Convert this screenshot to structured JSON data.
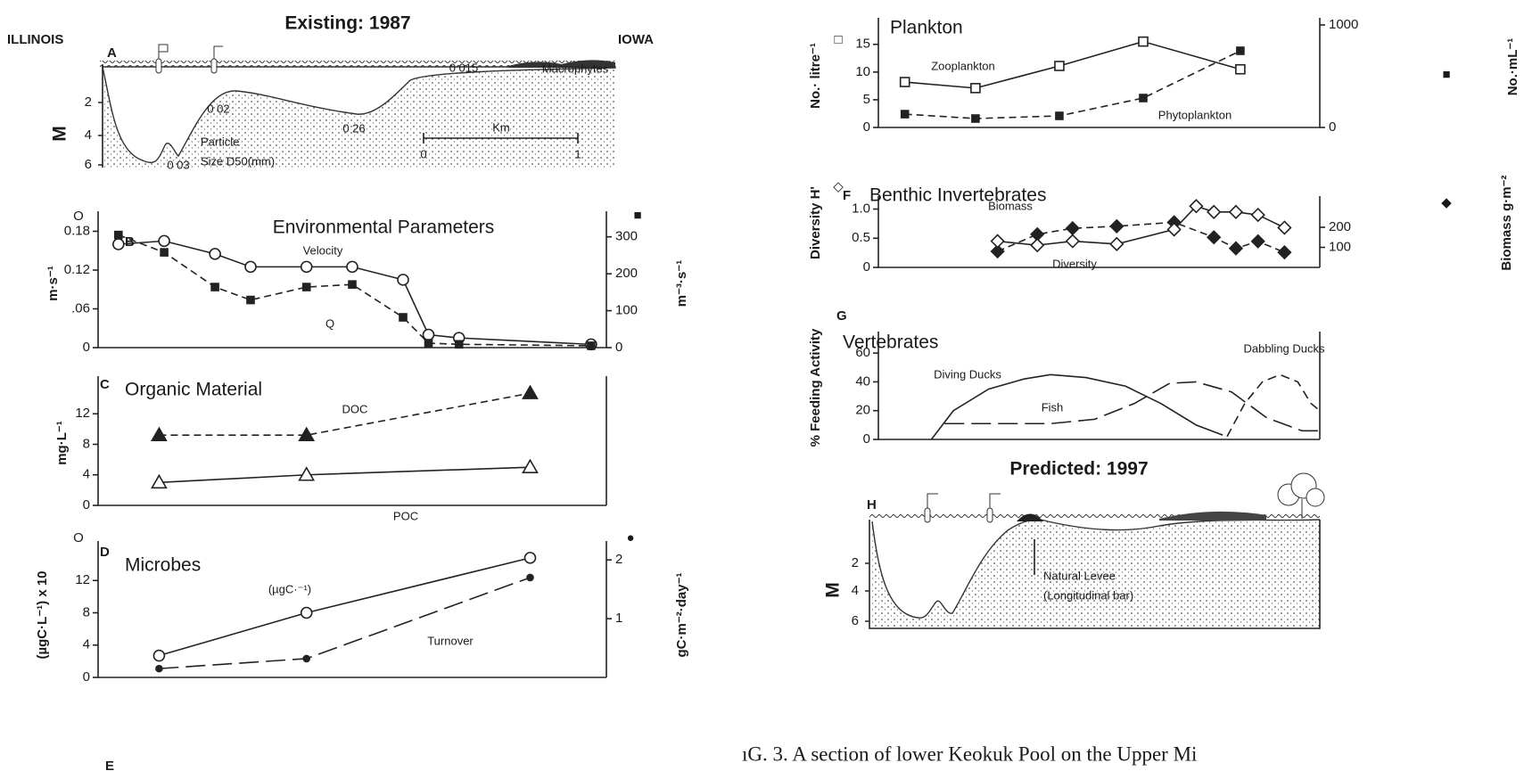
{
  "diagrams": {
    "existing": {
      "title": "Existing: 1987",
      "left_label": "ILLINOIS",
      "right_label": "IOWA",
      "letter": "A",
      "depth_label": "M",
      "depth_ticks": [
        2,
        4,
        6
      ],
      "annotations": [
        "0 03",
        "0 02",
        "0 26",
        "0 015",
        "Macrophytes",
        "Particle",
        "Size D50(mm)"
      ],
      "scale": {
        "label": "Km",
        "start": 0,
        "end": 1
      }
    },
    "predicted": {
      "title": "Predicted: 1997",
      "letter": "H",
      "depth_label": "M",
      "depth_ticks": [
        2,
        4,
        6
      ],
      "annotations": [
        "Natural Levee",
        "(Longitudinal bar)"
      ]
    }
  },
  "bottom_letter": "E",
  "caption": "ıG. 3.   A section of lower Keokuk Pool on the Upper Mi",
  "chart_data": [
    {
      "type": "line",
      "letter": "B",
      "title": "Environmental Parameters",
      "y_label": "m·s⁻¹",
      "y_symbol": "O",
      "y2_label": "m⁻³·s⁻¹",
      "y2_symbol": "■",
      "xlim": [
        0,
        100
      ],
      "ylim": [
        0,
        0.2
      ],
      "yticks": [
        0,
        {
          "value": 0.06,
          "label": ".06"
        },
        0.12,
        0.18
      ],
      "y2lim": [
        0,
        350
      ],
      "y2ticks": [
        0,
        100,
        200,
        300
      ],
      "series": [
        {
          "name": "Velocity",
          "color": "#222222",
          "marker": "circle-open",
          "dash": "solid",
          "x": [
            4,
            13,
            23,
            30,
            41,
            50,
            60,
            65,
            71,
            97
          ],
          "values": [
            0.16,
            0.165,
            0.145,
            0.125,
            0.125,
            0.125,
            0.105,
            0.02,
            0.015,
            0.005
          ]
        },
        {
          "name": "Q",
          "axis": "y2",
          "color": "#222222",
          "marker": "square-filled",
          "dash": "dashed",
          "x": [
            4,
            13,
            23,
            30,
            41,
            50,
            60,
            65,
            71,
            97
          ],
          "values": [
            305,
            258,
            164,
            129,
            164,
            171,
            82,
            12,
            9,
            5
          ]
        }
      ]
    },
    {
      "type": "line",
      "letter": "C",
      "title": "Organic Material",
      "y_label": "mg·L⁻¹",
      "xlim": [
        0,
        100
      ],
      "ylim": [
        0,
        16
      ],
      "yticks": [
        0,
        4,
        8,
        12
      ],
      "series": [
        {
          "name": "DOC",
          "color": "#222222",
          "marker": "triangle-filled",
          "dash": "dashed",
          "x": [
            12,
            41,
            85
          ],
          "values": [
            9.2,
            9.2,
            14.7
          ]
        },
        {
          "name": "POC",
          "color": "#222222",
          "marker": "triangle-open",
          "dash": "solid",
          "x": [
            12,
            41,
            85
          ],
          "values": [
            3.0,
            4.0,
            5.0
          ]
        }
      ]
    },
    {
      "type": "line",
      "letter": "D",
      "title": "Microbes",
      "y_label": "(µgC·L⁻¹) x 10",
      "y_symbol": "O",
      "y2_label": "gC·m⁻²·day⁻¹",
      "y2_symbol": "●",
      "xlim": [
        0,
        100
      ],
      "ylim": [
        0,
        16
      ],
      "yticks": [
        0,
        4,
        8,
        12
      ],
      "y2lim": [
        0,
        2.2
      ],
      "y2ticks": [
        1,
        2
      ],
      "series": [
        {
          "name": "(µgC·⁻¹)",
          "color": "#222222",
          "marker": "circle-open",
          "dash": "solid",
          "x": [
            12,
            41,
            85
          ],
          "values": [
            2.7,
            8.0,
            14.8
          ]
        },
        {
          "name": "Turnover",
          "axis": "y2",
          "color": "#222222",
          "marker": "dot",
          "dash": "long-dash",
          "x": [
            12,
            41,
            85
          ],
          "values": [
            0.15,
            0.32,
            1.7
          ]
        }
      ]
    },
    {
      "type": "line",
      "title": "Plankton",
      "y_label": "No.· litre⁻¹",
      "y_symbol": "□",
      "y2_label": "No.·mL⁻¹",
      "y2_symbol": "■",
      "xlim": [
        0,
        100
      ],
      "ylim": [
        0,
        18.5
      ],
      "yticks": [
        0,
        5,
        10,
        15
      ],
      "y2lim": [
        0,
        1000
      ],
      "y2ticks": [
        0,
        1000
      ],
      "series": [
        {
          "name": "Zooplankton",
          "color": "#222222",
          "marker": "square-open",
          "dash": "solid",
          "x": [
            6,
            22,
            41,
            60,
            82
          ],
          "values": [
            8.2,
            7.1,
            11.1,
            15.5,
            10.5
          ]
        },
        {
          "name": "Phytoplankton",
          "axis": "y2",
          "color": "#222222",
          "marker": "square-filled",
          "dash": "dashed",
          "x": [
            6,
            22,
            41,
            60,
            82
          ],
          "values": [
            130,
            87,
            113,
            287,
            748
          ]
        }
      ]
    },
    {
      "type": "line",
      "letter": "F",
      "title": "Benthic Invertebrates",
      "y_label": "Diversity H'",
      "y_symbol": "◇",
      "y2_label": "Biomass g·m⁻²",
      "y2_symbol": "◆",
      "xlim": [
        0,
        100
      ],
      "ylim": [
        0,
        1.1
      ],
      "yticks": [
        0,
        0.5,
        {
          "value": 1,
          "label": "1.0"
        }
      ],
      "y2lim": [
        0,
        320
      ],
      "y2ticks": [
        100,
        200
      ],
      "series": [
        {
          "name": "Biomass",
          "axis": "y2",
          "color": "#222222",
          "marker": "diamond-filled",
          "dash": "dashed",
          "x": [
            27,
            36,
            44,
            54,
            67,
            76,
            81,
            86,
            92
          ],
          "values": [
            80,
            165,
            195,
            205,
            225,
            150,
            95,
            130,
            75
          ]
        },
        {
          "name": "Diversity",
          "color": "#222222",
          "marker": "diamond-open",
          "dash": "solid",
          "x": [
            27,
            36,
            44,
            54,
            67,
            72,
            76,
            81,
            86,
            92
          ],
          "values": [
            0.45,
            0.38,
            0.45,
            0.4,
            0.65,
            1.05,
            0.95,
            0.95,
            0.9,
            0.68
          ]
        }
      ]
    },
    {
      "type": "line",
      "letter": "G",
      "title": "Vertebrates",
      "y_label": "% Feeding Activity",
      "xlim": [
        0,
        100
      ],
      "ylim": [
        0,
        70
      ],
      "yticks": [
        0,
        20,
        40,
        60
      ],
      "series": [
        {
          "name": "Diving Ducks",
          "color": "#222222",
          "marker": "none",
          "dash": "solid",
          "x": [
            12,
            17,
            25,
            33,
            39,
            47,
            56,
            64,
            72,
            78
          ],
          "values": [
            0,
            20,
            35,
            42,
            45,
            43,
            37,
            25,
            10,
            3
          ]
        },
        {
          "name": "Fish",
          "color": "#222222",
          "marker": "none",
          "dash": "long-dash",
          "x": [
            15,
            27,
            39,
            49,
            58,
            66,
            72,
            80,
            88,
            96,
            100
          ],
          "values": [
            11,
            11,
            11,
            14,
            25,
            39,
            40,
            33,
            15,
            6,
            6
          ]
        },
        {
          "name": "Dabbling Ducks",
          "color": "#222222",
          "marker": "none",
          "dash": "short-dash",
          "x": [
            79,
            83,
            87,
            91,
            95,
            98,
            100
          ],
          "values": [
            2,
            25,
            40,
            45,
            40,
            25,
            20
          ]
        }
      ]
    }
  ]
}
